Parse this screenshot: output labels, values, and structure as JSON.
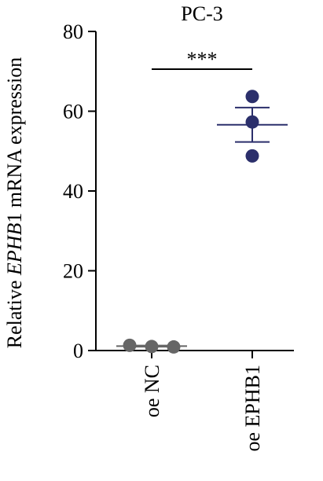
{
  "chart_data": {
    "type": "scatter",
    "title": "PC-3",
    "ylabel": {
      "prefix": "Relative ",
      "italic": "EPHB",
      "suffix": "1 mRNA expression"
    },
    "ylim": [
      0,
      80
    ],
    "yticks": [
      0,
      20,
      40,
      60,
      80
    ],
    "ytick_labels": [
      "0",
      "20",
      "40",
      "60",
      "80"
    ],
    "categories": [
      "oe NC",
      "oe EPHB1"
    ],
    "series": [
      {
        "category": "oe NC",
        "points": [
          1.3,
          1.0,
          0.9
        ],
        "mean": 1.1,
        "sem": 0.15,
        "color": "#666666"
      },
      {
        "category": "oe EPHB1",
        "points": [
          63.7,
          57.3,
          48.8
        ],
        "mean": 56.6,
        "sem": 4.3,
        "color": "#2b2f6b"
      }
    ],
    "significance": {
      "label": "***",
      "between": [
        "oe NC",
        "oe EPHB1"
      ]
    },
    "grid": false
  }
}
